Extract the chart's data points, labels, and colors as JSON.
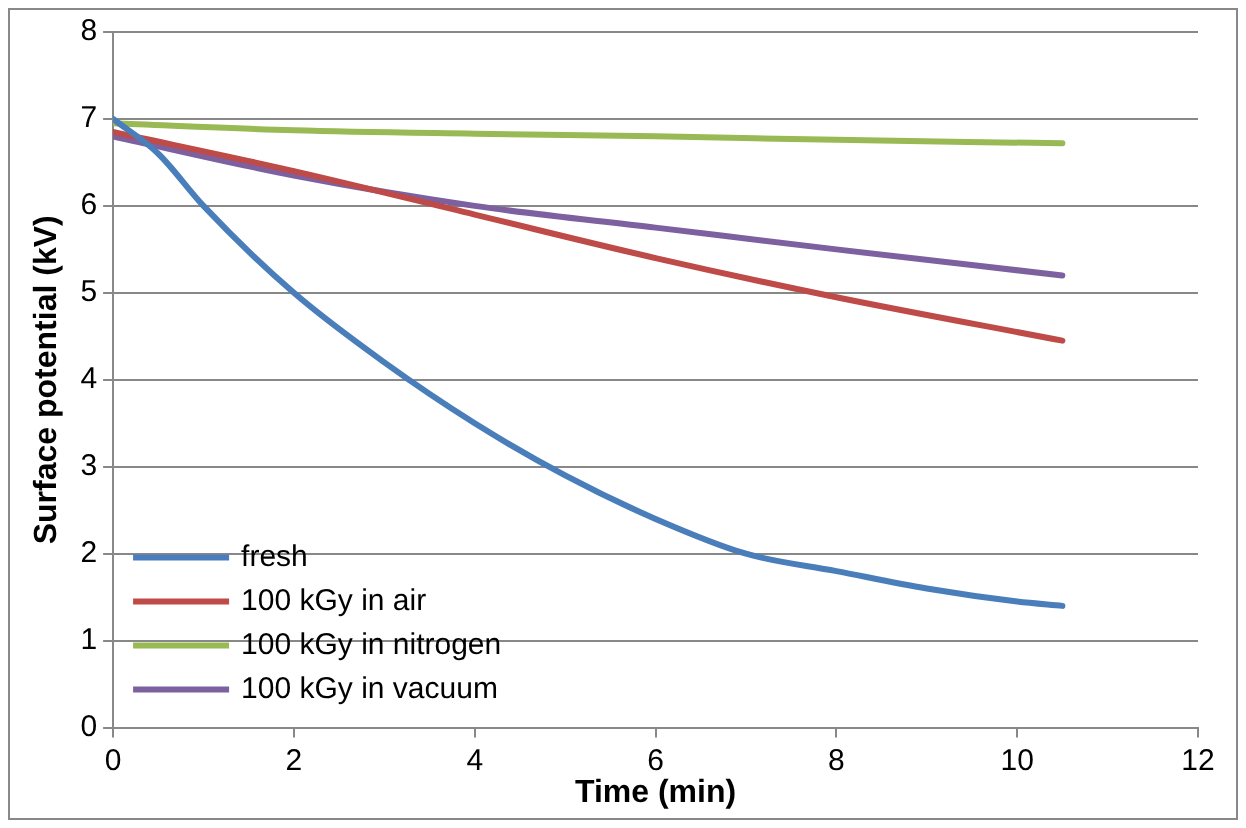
{
  "chart_data": {
    "type": "line",
    "xlabel": "Time (min)",
    "ylabel": "Surface potential (kV)",
    "xlim": [
      0,
      12
    ],
    "xticks": [
      0,
      2,
      4,
      6,
      8,
      10,
      12
    ],
    "ylim": [
      0,
      8
    ],
    "yticks": [
      0,
      1,
      2,
      3,
      4,
      5,
      6,
      7,
      8
    ],
    "grid": "y",
    "legend": "bottom left",
    "marker": "none",
    "line_style": "solid",
    "series": [
      {
        "name": "fresh",
        "color": "#4a7ebb",
        "x": [
          0,
          0.5,
          1,
          2,
          3,
          4,
          5,
          6,
          7,
          8,
          9,
          10,
          10.5
        ],
        "values": [
          7.0,
          6.6,
          6.0,
          5.0,
          4.2,
          3.5,
          2.9,
          2.4,
          2.0,
          1.8,
          1.6,
          1.45,
          1.4
        ]
      },
      {
        "name": "100 kGy in air",
        "color": "#be4b48",
        "x": [
          0,
          2,
          4,
          6,
          8,
          10.5
        ],
        "values": [
          6.85,
          6.4,
          5.9,
          5.4,
          4.95,
          4.45
        ]
      },
      {
        "name": "100 kGy in nitrogen",
        "color": "#98b954",
        "x": [
          0,
          2,
          4,
          6,
          8,
          10.5
        ],
        "values": [
          6.95,
          6.87,
          6.83,
          6.8,
          6.76,
          6.72
        ]
      },
      {
        "name": "100 kGy in vacuum",
        "color": "#7d60a0",
        "x": [
          0,
          2,
          4,
          6,
          8,
          10.5
        ],
        "values": [
          6.8,
          6.35,
          6.0,
          5.75,
          5.5,
          5.2
        ]
      }
    ]
  }
}
